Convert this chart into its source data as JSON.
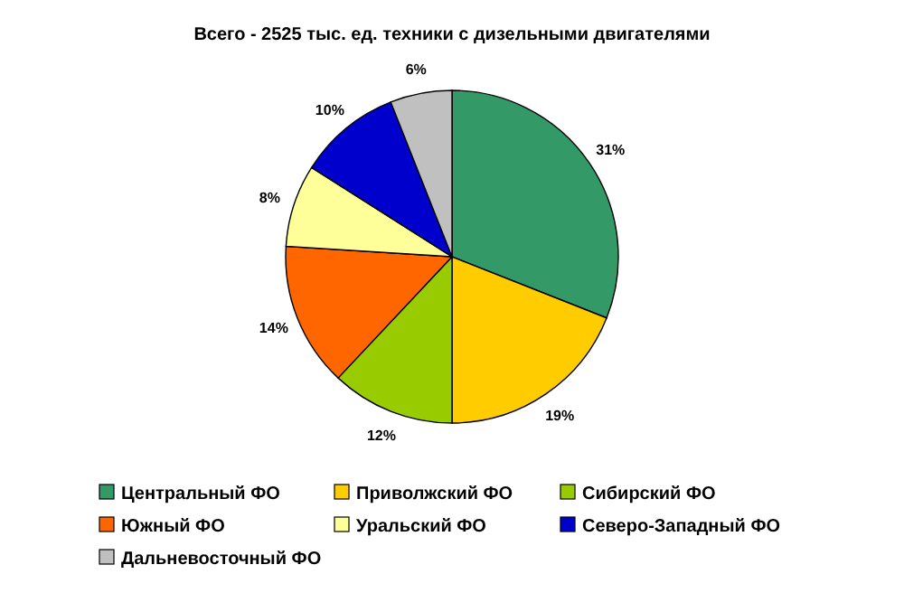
{
  "chart_data": {
    "type": "pie",
    "title": "Всего - 2525 тыс. ед. техники с дизельными двигателями",
    "categories": [
      "Центральный ФО",
      "Приволжский ФО",
      "Сибирский ФО",
      "Южный ФО",
      "Уральский ФО",
      "Северо-Западный ФО",
      "Дальневосточный ФО"
    ],
    "values": [
      31,
      19,
      12,
      14,
      8,
      10,
      6
    ],
    "colors": [
      "#339966",
      "#ffcc00",
      "#99cc00",
      "#ff6600",
      "#ffff99",
      "#0000cc",
      "#c0c0c0"
    ],
    "value_labels": [
      "31%",
      "19%",
      "12%",
      "14%",
      "8%",
      "10%",
      "6%"
    ],
    "legend": "bottom"
  }
}
